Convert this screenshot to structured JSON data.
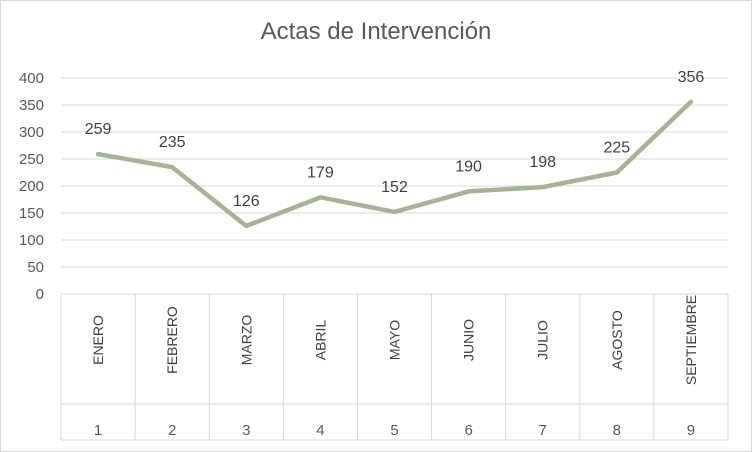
{
  "chart_data": {
    "type": "line",
    "title": "Actas de Intervención",
    "categories": [
      "ENERO",
      "FEBRERO",
      "MARZO",
      "ABRIL",
      "MAYO",
      "JUNIO",
      "JULIO",
      "AGOSTO",
      "SEPTIEMBRE"
    ],
    "category_groups": [
      "1",
      "2",
      "3",
      "4",
      "5",
      "6",
      "7",
      "8",
      "9"
    ],
    "values": [
      259,
      235,
      126,
      179,
      152,
      190,
      198,
      225,
      356
    ],
    "ylim": [
      0,
      400
    ],
    "yticks": [
      0,
      50,
      100,
      150,
      200,
      250,
      300,
      350,
      400
    ],
    "grid": true,
    "legend": "none",
    "line_color": "#a5b592",
    "xlabel": "",
    "ylabel": ""
  }
}
